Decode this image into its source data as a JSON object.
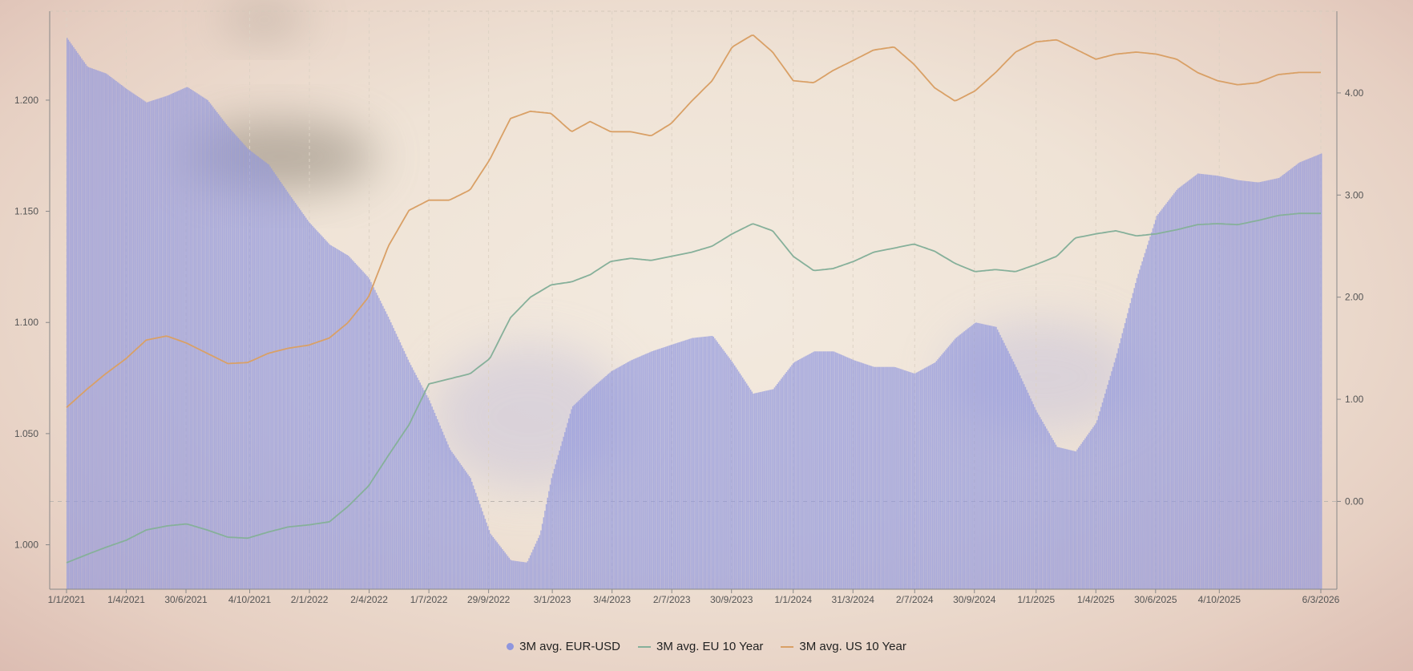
{
  "chart_data": {
    "type": "bar+line",
    "title": "",
    "x_start": "2021-01-01",
    "x_end": "2026-03-06",
    "x_ticks": [
      "1/1/2021",
      "1/4/2021",
      "30/6/2021",
      "4/10/2021",
      "2/1/2022",
      "2/4/2022",
      "1/7/2022",
      "29/9/2022",
      "3/1/2023",
      "3/4/2023",
      "2/7/2023",
      "30/9/2023",
      "1/1/2024",
      "31/3/2024",
      "2/7/2024",
      "30/9/2024",
      "1/1/2025",
      "1/4/2025",
      "30/6/2025",
      "4/10/2025",
      "6/3/2026"
    ],
    "y_left": {
      "ticks": [
        "1.000",
        "1.050",
        "1.100",
        "1.150",
        "1.200"
      ],
      "range": [
        0.98,
        1.24
      ]
    },
    "y_right": {
      "ticks": [
        "0.00",
        "1.00",
        "2.00",
        "3.00",
        "4.00"
      ],
      "range": [
        -0.86,
        4.8
      ]
    },
    "grid": true,
    "legend_position": "bottom-center",
    "series": [
      {
        "name": "3M avg. EUR-USD",
        "type": "bar",
        "axis": "left",
        "color": "#8f96de",
        "points": [
          [
            "2021-01-01",
            1.228
          ],
          [
            "2021-02-01",
            1.215
          ],
          [
            "2021-03-01",
            1.212
          ],
          [
            "2021-04-01",
            1.205
          ],
          [
            "2021-05-01",
            1.199
          ],
          [
            "2021-06-01",
            1.202
          ],
          [
            "2021-07-01",
            1.206
          ],
          [
            "2021-08-01",
            1.2
          ],
          [
            "2021-09-01",
            1.188
          ],
          [
            "2021-10-01",
            1.178
          ],
          [
            "2021-11-01",
            1.171
          ],
          [
            "2021-12-01",
            1.158
          ],
          [
            "2022-01-01",
            1.145
          ],
          [
            "2022-02-01",
            1.135
          ],
          [
            "2022-03-01",
            1.13
          ],
          [
            "2022-04-01",
            1.12
          ],
          [
            "2022-05-01",
            1.102
          ],
          [
            "2022-06-01",
            1.082
          ],
          [
            "2022-07-01",
            1.065
          ],
          [
            "2022-08-01",
            1.043
          ],
          [
            "2022-09-01",
            1.03
          ],
          [
            "2022-10-01",
            1.005
          ],
          [
            "2022-11-01",
            0.993
          ],
          [
            "2022-11-25",
            0.992
          ],
          [
            "2022-12-15",
            1.005
          ],
          [
            "2023-01-01",
            1.03
          ],
          [
            "2023-02-01",
            1.062
          ],
          [
            "2023-03-01",
            1.07
          ],
          [
            "2023-04-01",
            1.078
          ],
          [
            "2023-05-01",
            1.083
          ],
          [
            "2023-06-01",
            1.087
          ],
          [
            "2023-07-01",
            1.09
          ],
          [
            "2023-08-01",
            1.093
          ],
          [
            "2023-09-01",
            1.094
          ],
          [
            "2023-10-01",
            1.082
          ],
          [
            "2023-11-01",
            1.068
          ],
          [
            "2023-12-01",
            1.07
          ],
          [
            "2024-01-01",
            1.082
          ],
          [
            "2024-02-01",
            1.087
          ],
          [
            "2024-03-01",
            1.087
          ],
          [
            "2024-04-01",
            1.083
          ],
          [
            "2024-05-01",
            1.08
          ],
          [
            "2024-06-01",
            1.08
          ],
          [
            "2024-07-01",
            1.077
          ],
          [
            "2024-08-01",
            1.082
          ],
          [
            "2024-09-01",
            1.093
          ],
          [
            "2024-10-01",
            1.1
          ],
          [
            "2024-11-01",
            1.098
          ],
          [
            "2024-12-01",
            1.08
          ],
          [
            "2025-01-01",
            1.06
          ],
          [
            "2025-02-01",
            1.044
          ],
          [
            "2025-03-01",
            1.042
          ],
          [
            "2025-04-01",
            1.055
          ],
          [
            "2025-05-01",
            1.085
          ],
          [
            "2025-06-01",
            1.12
          ],
          [
            "2025-07-01",
            1.148
          ],
          [
            "2025-08-01",
            1.16
          ],
          [
            "2025-09-01",
            1.167
          ],
          [
            "2025-10-01",
            1.166
          ],
          [
            "2025-11-01",
            1.164
          ],
          [
            "2025-12-01",
            1.163
          ],
          [
            "2026-01-01",
            1.165
          ],
          [
            "2026-02-01",
            1.172
          ],
          [
            "2026-03-06",
            1.176
          ]
        ]
      },
      {
        "name": "3M avg. EU 10 Year",
        "type": "line",
        "axis": "right",
        "color": "#86b09a",
        "points": [
          [
            "2021-01-01",
            -0.6
          ],
          [
            "2021-02-01",
            -0.52
          ],
          [
            "2021-03-01",
            -0.45
          ],
          [
            "2021-04-01",
            -0.38
          ],
          [
            "2021-05-01",
            -0.28
          ],
          [
            "2021-06-01",
            -0.24
          ],
          [
            "2021-07-01",
            -0.22
          ],
          [
            "2021-08-01",
            -0.28
          ],
          [
            "2021-09-01",
            -0.35
          ],
          [
            "2021-10-01",
            -0.36
          ],
          [
            "2021-11-01",
            -0.3
          ],
          [
            "2021-12-01",
            -0.25
          ],
          [
            "2022-01-01",
            -0.23
          ],
          [
            "2022-02-01",
            -0.2
          ],
          [
            "2022-03-01",
            -0.05
          ],
          [
            "2022-04-01",
            0.15
          ],
          [
            "2022-05-01",
            0.45
          ],
          [
            "2022-06-01",
            0.75
          ],
          [
            "2022-07-01",
            1.15
          ],
          [
            "2022-08-01",
            1.2
          ],
          [
            "2022-09-01",
            1.25
          ],
          [
            "2022-10-01",
            1.4
          ],
          [
            "2022-11-01",
            1.8
          ],
          [
            "2022-12-01",
            2.0
          ],
          [
            "2023-01-01",
            2.12
          ],
          [
            "2023-02-01",
            2.15
          ],
          [
            "2023-03-01",
            2.22
          ],
          [
            "2023-04-01",
            2.35
          ],
          [
            "2023-05-01",
            2.38
          ],
          [
            "2023-06-01",
            2.36
          ],
          [
            "2023-07-01",
            2.4
          ],
          [
            "2023-08-01",
            2.44
          ],
          [
            "2023-09-01",
            2.5
          ],
          [
            "2023-10-01",
            2.62
          ],
          [
            "2023-11-01",
            2.72
          ],
          [
            "2023-12-01",
            2.65
          ],
          [
            "2024-01-01",
            2.4
          ],
          [
            "2024-02-01",
            2.26
          ],
          [
            "2024-03-01",
            2.28
          ],
          [
            "2024-04-01",
            2.35
          ],
          [
            "2024-05-01",
            2.44
          ],
          [
            "2024-06-01",
            2.48
          ],
          [
            "2024-07-01",
            2.52
          ],
          [
            "2024-08-01",
            2.45
          ],
          [
            "2024-09-01",
            2.33
          ],
          [
            "2024-10-01",
            2.25
          ],
          [
            "2024-11-01",
            2.27
          ],
          [
            "2024-12-01",
            2.25
          ],
          [
            "2025-01-01",
            2.32
          ],
          [
            "2025-02-01",
            2.4
          ],
          [
            "2025-03-01",
            2.58
          ],
          [
            "2025-04-01",
            2.62
          ],
          [
            "2025-05-01",
            2.65
          ],
          [
            "2025-06-01",
            2.6
          ],
          [
            "2025-07-01",
            2.62
          ],
          [
            "2025-08-01",
            2.66
          ],
          [
            "2025-09-01",
            2.71
          ],
          [
            "2025-10-01",
            2.72
          ],
          [
            "2025-11-01",
            2.71
          ],
          [
            "2025-12-01",
            2.75
          ],
          [
            "2026-01-01",
            2.8
          ],
          [
            "2026-02-01",
            2.82
          ],
          [
            "2026-03-06",
            2.82
          ]
        ]
      },
      {
        "name": "3M avg. US 10 Year",
        "type": "line",
        "axis": "right",
        "color": "#d9a066",
        "points": [
          [
            "2021-01-01",
            0.92
          ],
          [
            "2021-02-01",
            1.1
          ],
          [
            "2021-03-01",
            1.25
          ],
          [
            "2021-04-01",
            1.4
          ],
          [
            "2021-05-01",
            1.58
          ],
          [
            "2021-06-01",
            1.62
          ],
          [
            "2021-07-01",
            1.55
          ],
          [
            "2021-08-01",
            1.45
          ],
          [
            "2021-09-01",
            1.35
          ],
          [
            "2021-10-01",
            1.36
          ],
          [
            "2021-11-01",
            1.45
          ],
          [
            "2021-12-01",
            1.5
          ],
          [
            "2022-01-01",
            1.53
          ],
          [
            "2022-02-01",
            1.6
          ],
          [
            "2022-03-01",
            1.75
          ],
          [
            "2022-04-01",
            2.0
          ],
          [
            "2022-05-01",
            2.5
          ],
          [
            "2022-06-01",
            2.85
          ],
          [
            "2022-07-01",
            2.95
          ],
          [
            "2022-08-01",
            2.95
          ],
          [
            "2022-09-01",
            3.05
          ],
          [
            "2022-10-01",
            3.35
          ],
          [
            "2022-11-01",
            3.75
          ],
          [
            "2022-12-01",
            3.82
          ],
          [
            "2023-01-01",
            3.8
          ],
          [
            "2023-02-01",
            3.62
          ],
          [
            "2023-03-01",
            3.72
          ],
          [
            "2023-04-01",
            3.62
          ],
          [
            "2023-05-01",
            3.62
          ],
          [
            "2023-06-01",
            3.58
          ],
          [
            "2023-07-01",
            3.7
          ],
          [
            "2023-08-01",
            3.92
          ],
          [
            "2023-09-01",
            4.12
          ],
          [
            "2023-10-01",
            4.45
          ],
          [
            "2023-11-01",
            4.57
          ],
          [
            "2023-12-01",
            4.4
          ],
          [
            "2024-01-01",
            4.12
          ],
          [
            "2024-02-01",
            4.1
          ],
          [
            "2024-03-01",
            4.22
          ],
          [
            "2024-04-01",
            4.32
          ],
          [
            "2024-05-01",
            4.42
          ],
          [
            "2024-06-01",
            4.45
          ],
          [
            "2024-07-01",
            4.28
          ],
          [
            "2024-08-01",
            4.05
          ],
          [
            "2024-09-01",
            3.92
          ],
          [
            "2024-10-01",
            4.02
          ],
          [
            "2024-11-01",
            4.2
          ],
          [
            "2024-12-01",
            4.4
          ],
          [
            "2025-01-01",
            4.5
          ],
          [
            "2025-02-01",
            4.52
          ],
          [
            "2025-03-01",
            4.43
          ],
          [
            "2025-04-01",
            4.33
          ],
          [
            "2025-05-01",
            4.38
          ],
          [
            "2025-06-01",
            4.4
          ],
          [
            "2025-07-01",
            4.38
          ],
          [
            "2025-08-01",
            4.33
          ],
          [
            "2025-09-01",
            4.2
          ],
          [
            "2025-10-01",
            4.12
          ],
          [
            "2025-11-01",
            4.08
          ],
          [
            "2025-12-01",
            4.1
          ],
          [
            "2026-01-01",
            4.18
          ],
          [
            "2026-02-01",
            4.2
          ],
          [
            "2026-03-06",
            4.2
          ]
        ]
      }
    ]
  },
  "legend": {
    "items": [
      {
        "label": "3M avg. EUR-USD",
        "color": "#8f96de",
        "marker": "dot"
      },
      {
        "label": "3M avg. EU 10 Year",
        "color": "#86b09a",
        "marker": "line"
      },
      {
        "label": "3M avg. US 10 Year",
        "color": "#d9a066",
        "marker": "line"
      }
    ]
  }
}
